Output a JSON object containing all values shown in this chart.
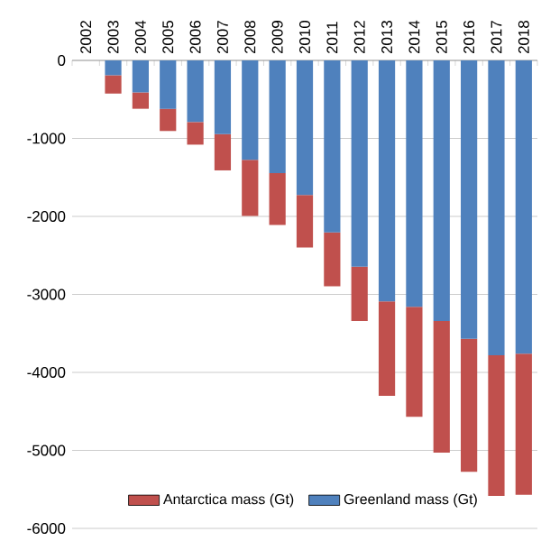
{
  "chart_data": {
    "type": "bar",
    "stacked": true,
    "categories": [
      "2002",
      "2003",
      "2004",
      "2005",
      "2006",
      "2007",
      "2008",
      "2009",
      "2010",
      "2011",
      "2012",
      "2013",
      "2014",
      "2015",
      "2016",
      "2017",
      "2018"
    ],
    "series": [
      {
        "name": "Greenland mass (Gt)",
        "color": "#4f81bd",
        "values": [
          0,
          -190,
          -410,
          -620,
          -790,
          -945,
          -1275,
          -1445,
          -1725,
          -2205,
          -2645,
          -3090,
          -3160,
          -3340,
          -3570,
          -3780,
          -3760
        ]
      },
      {
        "name": "Antarctica mass (Gt)",
        "color": "#c0504d",
        "values": [
          0,
          -235,
          -210,
          -285,
          -290,
          -465,
          -720,
          -665,
          -675,
          -690,
          -695,
          -1210,
          -1410,
          -1690,
          -1705,
          -1805,
          -1810
        ]
      }
    ],
    "ylim": [
      -6000,
      0
    ],
    "yticks": [
      0,
      -1000,
      -2000,
      -3000,
      -4000,
      -5000,
      -6000
    ],
    "grid": "y",
    "legend": "bottom"
  }
}
